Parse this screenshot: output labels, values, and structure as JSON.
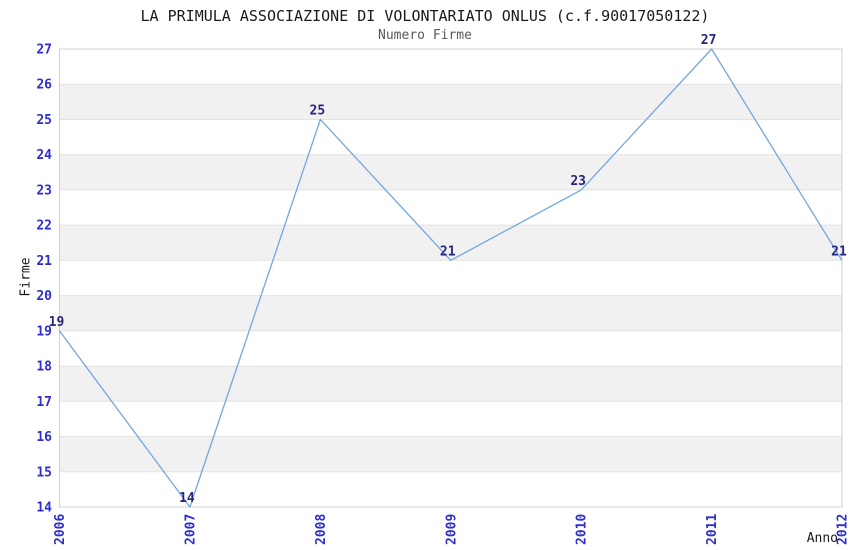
{
  "chart_data": {
    "type": "line",
    "title": "LA PRIMULA ASSOCIAZIONE DI VOLONTARIATO ONLUS (c.f.90017050122)",
    "subtitle": "Numero Firme",
    "xlabel": "Anno",
    "ylabel": "Firme",
    "categories": [
      "2006",
      "2007",
      "2008",
      "2009",
      "2010",
      "2011",
      "2012"
    ],
    "values": [
      19,
      14,
      25,
      21,
      23,
      27,
      21
    ],
    "point_labels": [
      "19",
      "14",
      "25",
      "21",
      "23",
      "27",
      "21"
    ],
    "ylim": [
      14,
      27
    ],
    "y_tick_step": 1,
    "y_ticks": [
      14,
      15,
      16,
      17,
      18,
      19,
      20,
      21,
      22,
      23,
      24,
      25,
      26,
      27
    ],
    "grid": "horizontal",
    "banded_background": true,
    "legend": "none",
    "x_tick_rotation": -90,
    "colors": {
      "line": "#74a7de",
      "tick_label": "#2d2dd0",
      "point_label": "#26267d",
      "band": "#f1f1f1",
      "gridline": "#e4e4e4",
      "border": "#d0d0d0",
      "title": "#1a1a1a",
      "subtitle": "#595959",
      "axis_label": "#1a1a1a",
      "background": "#ffffff"
    }
  }
}
